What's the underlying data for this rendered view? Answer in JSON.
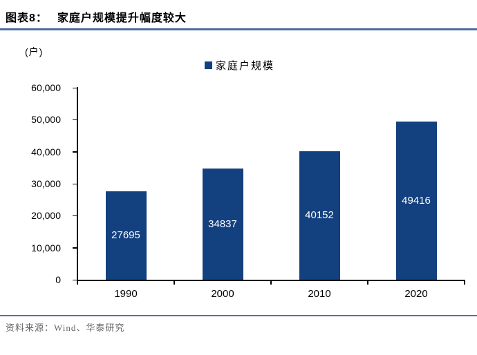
{
  "header": {
    "label": "图表8：",
    "title": "家庭户规模提升幅度较大"
  },
  "chart_data": {
    "type": "bar",
    "title": "家庭户规模提升幅度较大",
    "unit_label": "(户)",
    "categories": [
      "1990",
      "2000",
      "2010",
      "2020"
    ],
    "series": [
      {
        "name": "家庭户规模",
        "values": [
          27695,
          34837,
          40152,
          49416
        ],
        "data_labels": [
          "27695",
          "34837",
          "40152",
          "49416"
        ]
      }
    ],
    "xlabel": "",
    "ylabel": "",
    "ylim": [
      0,
      60000
    ],
    "y_tick_values": [
      0,
      10000,
      20000,
      30000,
      40000,
      50000,
      60000
    ],
    "y_tick_labels": [
      "0",
      "10,000",
      "20,000",
      "30,000",
      "40,000",
      "50,000",
      "60,000"
    ],
    "grid": false,
    "legend_position": "top",
    "bar_color": "#13407E",
    "data_label_color": "#FFFFFF"
  },
  "footer": {
    "source": "资料来源：Wind、华泰研究"
  },
  "colors": {
    "bar": "#13407E",
    "title_rule": "#4A6D9B",
    "footer_rule": "#5D7284",
    "footer_text": "#666666",
    "axis": "#000000"
  }
}
